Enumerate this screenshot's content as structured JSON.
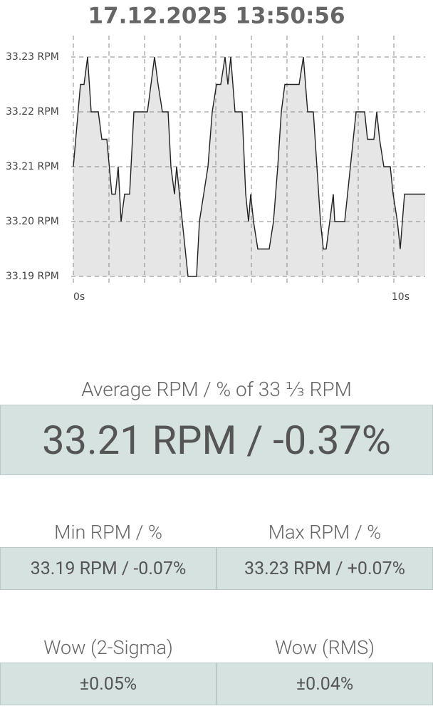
{
  "chart_data": {
    "type": "line",
    "title": "17.12.2025 13:50:56",
    "x": [
      0,
      0.2,
      0.3,
      0.4,
      0.5,
      0.7,
      0.8,
      0.94,
      1.08,
      1.18,
      1.26,
      1.34,
      1.44,
      1.58,
      1.7,
      2.08,
      2.18,
      2.28,
      2.38,
      2.5,
      2.66,
      2.74,
      2.84,
      2.9,
      2.98,
      3.14,
      3.22,
      3.46,
      3.54,
      3.66,
      3.78,
      3.9,
      4.02,
      4.14,
      4.26,
      4.34,
      4.42,
      4.54,
      4.74,
      4.84,
      4.92,
      4.98,
      5.06,
      5.18,
      5.5,
      5.62,
      5.74,
      5.84,
      5.94,
      6.34,
      6.46,
      6.58,
      6.74,
      6.84,
      6.94,
      7.02,
      7.1,
      7.2,
      7.3,
      7.34,
      7.62,
      7.7,
      7.78,
      7.94,
      8.18,
      8.26,
      8.44,
      8.52,
      8.6,
      8.72,
      8.9,
      8.98,
      9.1,
      9.18,
      9.3,
      9.88
    ],
    "values": [
      33.21,
      33.225,
      33.225,
      33.23,
      33.22,
      33.22,
      33.215,
      33.215,
      33.205,
      33.205,
      33.21,
      33.2,
      33.205,
      33.205,
      33.22,
      33.22,
      33.225,
      33.23,
      33.225,
      33.22,
      33.22,
      33.21,
      33.205,
      33.21,
      33.205,
      33.195,
      33.19,
      33.19,
      33.2,
      33.205,
      33.21,
      33.22,
      33.225,
      33.225,
      33.23,
      33.225,
      33.23,
      33.22,
      33.22,
      33.205,
      33.2,
      33.205,
      33.2,
      33.195,
      33.195,
      33.2,
      33.21,
      33.22,
      33.225,
      33.225,
      33.23,
      33.22,
      33.22,
      33.21,
      33.2,
      33.195,
      33.195,
      33.2,
      33.205,
      33.2,
      33.2,
      33.205,
      33.21,
      33.22,
      33.22,
      33.215,
      33.215,
      33.22,
      33.215,
      33.21,
      33.21,
      33.205,
      33.2,
      33.195,
      33.205,
      33.205
    ],
    "color": "#222222",
    "fill": "#e6e6e6",
    "xlim": [
      0,
      10
    ],
    "xticks": [
      {
        "value": 0,
        "label": "0s"
      },
      {
        "value": 10,
        "label": "10s"
      }
    ],
    "xgrid": [
      0,
      1,
      2,
      3,
      4,
      5,
      6,
      7,
      8,
      9
    ],
    "ylim": [
      33.19,
      33.23
    ],
    "yticks": [
      {
        "value": 33.19,
        "label": "33.19 RPM"
      },
      {
        "value": 33.2,
        "label": "33.20 RPM"
      },
      {
        "value": 33.21,
        "label": "33.21 RPM"
      },
      {
        "value": 33.22,
        "label": "33.22 RPM"
      },
      {
        "value": 33.23,
        "label": "33.23 RPM"
      }
    ],
    "grid": true
  },
  "average": {
    "label": "Average RPM / % of 33 ⅓ RPM",
    "value": "33.21 RPM / -0.37%"
  },
  "min": {
    "label": "Min RPM / %",
    "value": "33.19 RPM / -0.07%"
  },
  "max": {
    "label": "Max RPM / %",
    "value": "33.23 RPM / +0.07%"
  },
  "wow_2sigma": {
    "label": "Wow (2-Sigma)",
    "value": "±0.05%"
  },
  "wow_rms": {
    "label": "Wow (RMS)",
    "value": "±0.04%"
  }
}
